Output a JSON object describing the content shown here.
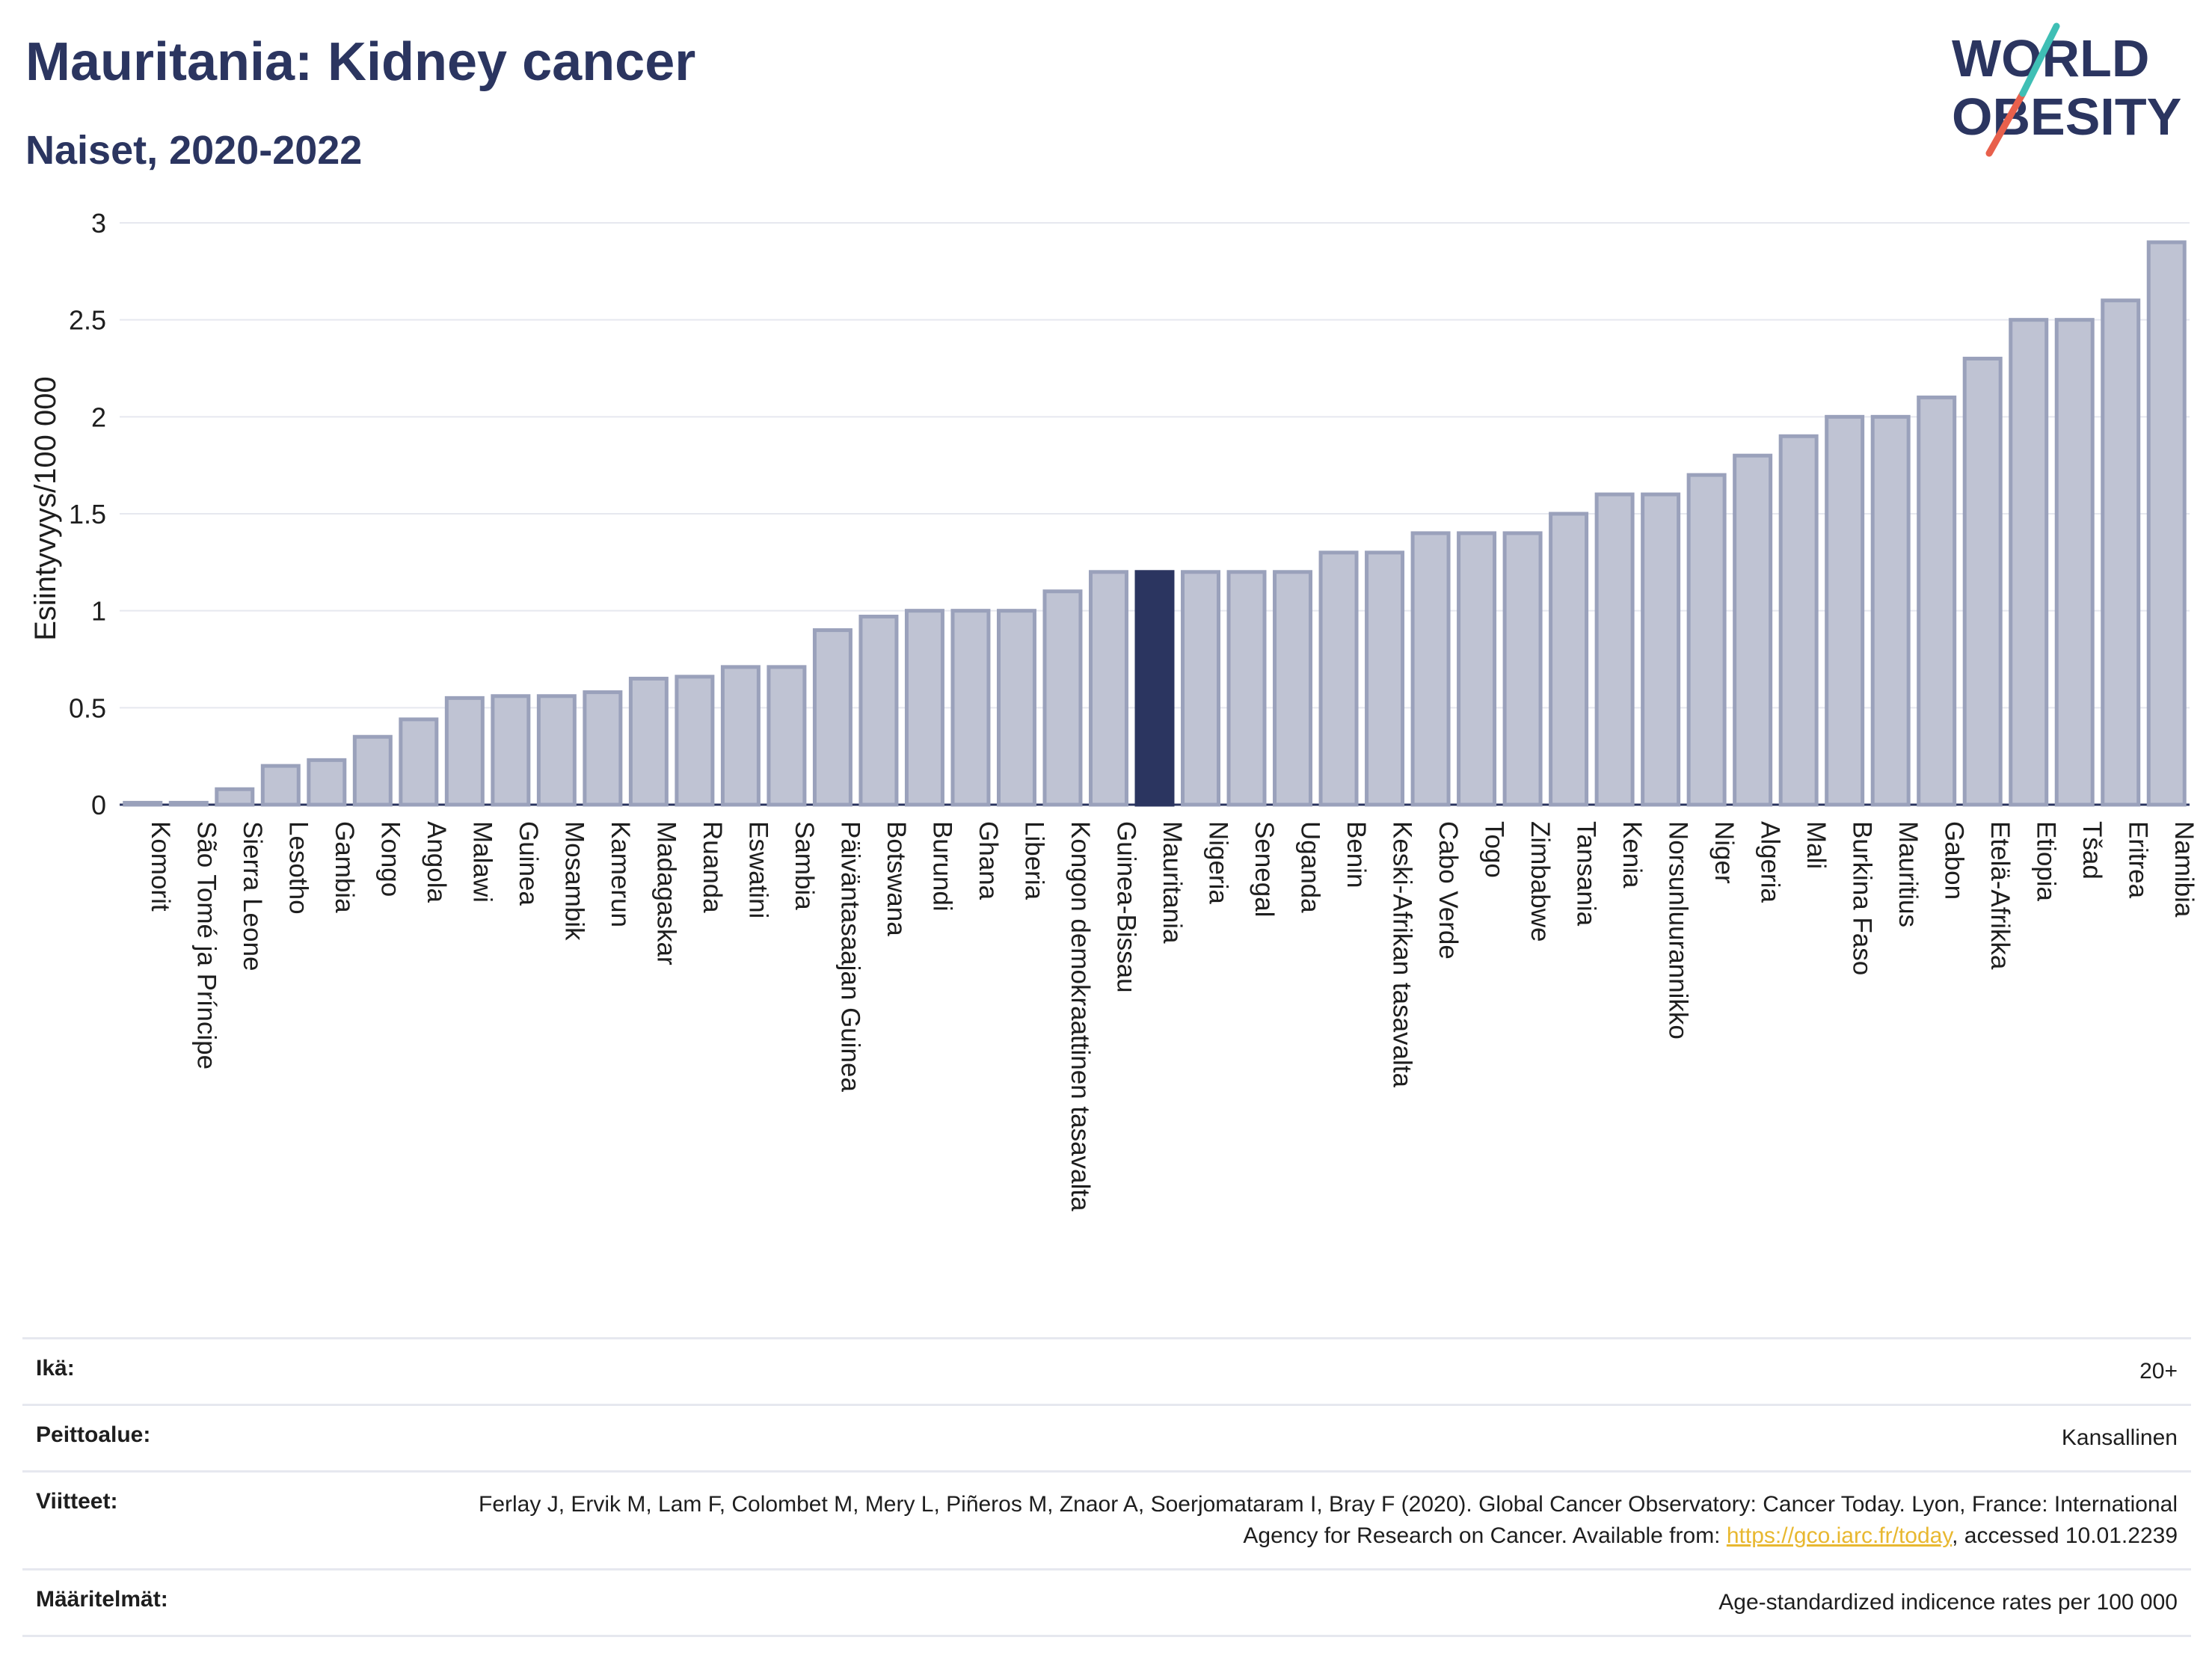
{
  "header": {
    "title": "Mauritania: Kidney cancer",
    "subtitle": "Naiset, 2020-2022"
  },
  "logo": {
    "line1": "WORLD",
    "line2": "OBESITY",
    "accent_colors": [
      "#3fbfb5",
      "#e8604c"
    ]
  },
  "colors": {
    "bar": "#bfc3d3",
    "bar_stroke": "#9aa1bb",
    "highlight": "#2b3560",
    "grid": "#e6e8ef",
    "axis": "#2b3560"
  },
  "chart_data": {
    "type": "bar",
    "ylabel": "Esiintyvyys/100 000",
    "ylim": [
      0,
      3
    ],
    "yticks": [
      "0",
      "0.5",
      "1",
      "1.5",
      "2",
      "2.5",
      "3"
    ],
    "grid": true,
    "highlight": "Mauritania",
    "categories": [
      "Komorit",
      "São Tomé ja Príncipe",
      "Sierra Leone",
      "Lesotho",
      "Gambia",
      "Kongo",
      "Angola",
      "Malawi",
      "Guinea",
      "Mosambik",
      "Kamerun",
      "Madagaskar",
      "Ruanda",
      "Eswatini",
      "Sambia",
      "Päiväntasaajan Guinea",
      "Botswana",
      "Burundi",
      "Ghana",
      "Liberia",
      "Kongon demokraattinen tasavalta",
      "Guinea-Bissau",
      "Mauritania",
      "Nigeria",
      "Senegal",
      "Uganda",
      "Benin",
      "Keski-Afrikan tasavalta",
      "Cabo Verde",
      "Togo",
      "Zimbabwe",
      "Tansania",
      "Kenia",
      "Norsunluurannikko",
      "Niger",
      "Algeria",
      "Mali",
      "Burkina Faso",
      "Mauritius",
      "Gabon",
      "Etelä-Afrikka",
      "Etiopia",
      "Tšad",
      "Eritrea",
      "Namibia"
    ],
    "values": [
      0.01,
      0.01,
      0.08,
      0.2,
      0.23,
      0.35,
      0.44,
      0.55,
      0.56,
      0.56,
      0.58,
      0.65,
      0.66,
      0.71,
      0.71,
      0.9,
      0.97,
      1.0,
      1.0,
      1.0,
      1.1,
      1.2,
      1.2,
      1.2,
      1.2,
      1.2,
      1.3,
      1.3,
      1.4,
      1.4,
      1.4,
      1.5,
      1.6,
      1.6,
      1.7,
      1.8,
      1.9,
      2.0,
      2.0,
      2.1,
      2.3,
      2.5,
      2.5,
      2.6,
      2.9
    ]
  },
  "meta": {
    "age_label": "Ikä:",
    "age_value": "20+",
    "coverage_label": "Peittoalue:",
    "coverage_value": "Kansallinen",
    "refs_label": "Viitteet:",
    "refs_text_1": "Ferlay J, Ervik M, Lam F, Colombet M, Mery L, Piñeros M, Znaor A, Soerjomataram I, Bray F (2020). Global Cancer Observatory: Cancer Today. Lyon, France: International Agency for Research on Cancer. Available from: ",
    "refs_link": "https://gco.iarc.fr/today",
    "refs_text_2": ", accessed 10.01.2239",
    "defs_label": "Määritelmät:",
    "defs_value": "Age-standardized indicence rates per 100 000"
  }
}
